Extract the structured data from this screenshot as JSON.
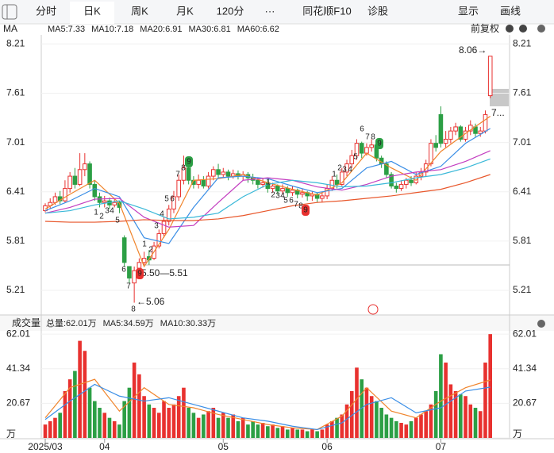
{
  "toolbar": {
    "tabs": [
      "分时",
      "日K",
      "周K",
      "月K",
      "120分",
      "···",
      "同花顺F10",
      "诊股"
    ],
    "active": 1,
    "right": [
      "显示",
      "画线"
    ]
  },
  "chart_data": [
    {
      "type": "candlestick",
      "legend_label": "MA",
      "adjust_label": "前复权",
      "up_color": "#e8312f",
      "down_color": "#2c9f45",
      "ylim": [
        4.93,
        8.31
      ],
      "yticks": [
        5.21,
        5.81,
        6.41,
        7.01,
        7.61,
        8.21
      ],
      "open": [
        6.18,
        6.24,
        6.28,
        6.35,
        6.3,
        6.45,
        6.6,
        6.5,
        6.68,
        6.75,
        6.5,
        6.35,
        6.28,
        6.3,
        6.25,
        6.28,
        5.85,
        5.5,
        5.3,
        5.48,
        5.55,
        5.62,
        5.6,
        5.75,
        5.9,
        6.05,
        6.2,
        6.35,
        6.55,
        6.7,
        6.55,
        6.5,
        6.55,
        6.48,
        6.6,
        6.68,
        6.62,
        6.65,
        6.6,
        6.63,
        6.6,
        6.62,
        6.58,
        6.55,
        6.5,
        6.52,
        6.45,
        6.48,
        6.42,
        6.45,
        6.4,
        6.43,
        6.38,
        6.4,
        6.36,
        6.38,
        6.33,
        6.36,
        6.45,
        6.55,
        6.5,
        6.65,
        6.75,
        6.85,
        7.0,
        6.88,
        6.95,
        6.98,
        6.82,
        6.75,
        6.62,
        6.48,
        6.45,
        6.5,
        6.55,
        6.52,
        6.6,
        6.65,
        6.75,
        7.0,
        7.35,
        7.0,
        7.05,
        7.15,
        7.2,
        7.05,
        7.15,
        7.2,
        7.12,
        7.15,
        7.58
      ],
      "high": [
        6.27,
        6.33,
        6.4,
        6.42,
        6.55,
        6.65,
        6.7,
        6.88,
        6.88,
        6.78,
        6.55,
        6.4,
        6.36,
        6.34,
        6.33,
        6.3,
        5.88,
        5.5,
        5.5,
        5.6,
        5.68,
        5.7,
        5.8,
        5.95,
        6.1,
        6.25,
        6.42,
        6.62,
        6.85,
        6.72,
        6.6,
        6.62,
        6.6,
        6.65,
        6.72,
        6.75,
        6.7,
        6.68,
        6.68,
        6.67,
        6.66,
        6.65,
        6.63,
        6.58,
        6.58,
        6.55,
        6.52,
        6.5,
        6.5,
        6.48,
        6.48,
        6.45,
        6.45,
        6.42,
        6.42,
        6.4,
        6.4,
        6.5,
        6.6,
        6.62,
        6.7,
        6.8,
        6.92,
        7.05,
        7.02,
        7.0,
        7.05,
        7.0,
        6.85,
        6.78,
        6.65,
        6.52,
        6.55,
        6.58,
        6.6,
        6.65,
        6.7,
        6.8,
        7.05,
        7.1,
        7.45,
        7.15,
        7.2,
        7.25,
        7.22,
        7.2,
        7.28,
        7.24,
        7.2,
        7.4,
        8.06
      ],
      "low": [
        6.16,
        6.2,
        6.25,
        6.26,
        6.28,
        6.4,
        6.45,
        6.48,
        6.6,
        6.45,
        6.3,
        6.22,
        6.22,
        6.2,
        6.22,
        6.15,
        5.5,
        5.3,
        5.06,
        5.45,
        5.52,
        5.52,
        5.58,
        5.72,
        5.85,
        6.0,
        6.15,
        6.3,
        6.5,
        6.5,
        6.45,
        6.45,
        6.45,
        6.45,
        6.55,
        6.58,
        6.58,
        6.55,
        6.57,
        6.56,
        6.55,
        6.52,
        6.5,
        6.45,
        6.46,
        6.4,
        6.4,
        6.38,
        6.38,
        6.35,
        6.36,
        6.33,
        6.34,
        6.3,
        6.3,
        6.28,
        6.28,
        6.32,
        6.42,
        6.45,
        6.48,
        6.6,
        6.7,
        6.8,
        6.82,
        6.85,
        6.9,
        6.78,
        6.7,
        6.58,
        6.45,
        6.4,
        6.42,
        6.45,
        6.48,
        6.5,
        6.55,
        6.6,
        6.72,
        6.9,
        6.95,
        6.95,
        7.0,
        7.1,
        7.02,
        7.02,
        7.1,
        7.08,
        7.08,
        7.12,
        7.55
      ],
      "close": [
        6.24,
        6.28,
        6.35,
        6.3,
        6.45,
        6.6,
        6.5,
        6.68,
        6.75,
        6.5,
        6.35,
        6.28,
        6.3,
        6.25,
        6.28,
        6.22,
        5.55,
        5.36,
        5.45,
        5.55,
        5.6,
        5.58,
        5.75,
        5.9,
        6.05,
        6.2,
        6.35,
        6.55,
        6.7,
        6.55,
        6.5,
        6.55,
        6.48,
        6.6,
        6.68,
        6.62,
        6.65,
        6.6,
        6.63,
        6.6,
        6.62,
        6.58,
        6.55,
        6.5,
        6.52,
        6.45,
        6.48,
        6.42,
        6.45,
        6.4,
        6.43,
        6.38,
        6.4,
        6.36,
        6.38,
        6.33,
        6.36,
        6.45,
        6.55,
        6.5,
        6.65,
        6.75,
        6.85,
        7.0,
        6.88,
        6.95,
        6.98,
        6.82,
        6.75,
        6.62,
        6.48,
        6.45,
        6.5,
        6.55,
        6.52,
        6.6,
        6.65,
        6.75,
        7.0,
        6.95,
        7.0,
        7.05,
        7.15,
        7.2,
        7.05,
        7.15,
        7.22,
        7.12,
        7.15,
        7.35,
        8.06
      ],
      "series": [
        {
          "name": "MA5:7.33",
          "color": "#f0852d",
          "x": [
            0,
            5,
            10,
            15,
            20,
            25,
            30,
            35,
            40,
            45,
            50,
            55,
            60,
            65,
            70,
            75,
            80,
            85,
            90
          ],
          "values": [
            6.2,
            6.38,
            6.55,
            6.27,
            5.5,
            5.95,
            6.55,
            6.57,
            6.62,
            6.52,
            6.44,
            6.37,
            6.52,
            6.88,
            6.7,
            6.55,
            6.9,
            7.12,
            7.33
          ]
        },
        {
          "name": "MA10:7.18",
          "color": "#3a8ee6",
          "x": [
            0,
            5,
            10,
            15,
            20,
            25,
            30,
            35,
            40,
            45,
            50,
            55,
            60,
            65,
            70,
            75,
            80,
            85,
            90
          ],
          "values": [
            6.18,
            6.3,
            6.45,
            6.35,
            5.85,
            5.78,
            6.22,
            6.58,
            6.6,
            6.57,
            6.48,
            6.4,
            6.45,
            6.7,
            6.78,
            6.62,
            6.72,
            7.0,
            7.18
          ]
        },
        {
          "name": "MA20:6.91",
          "color": "#c33ec0",
          "x": [
            0,
            5,
            10,
            15,
            20,
            25,
            30,
            35,
            40,
            45,
            50,
            55,
            60,
            65,
            70,
            75,
            80,
            85,
            90
          ],
          "values": [
            6.15,
            6.22,
            6.32,
            6.33,
            6.1,
            5.98,
            6.0,
            6.28,
            6.55,
            6.58,
            6.55,
            6.47,
            6.43,
            6.5,
            6.6,
            6.65,
            6.68,
            6.78,
            6.91
          ]
        },
        {
          "name": "MA30:6.81",
          "color": "#39b8d8",
          "x": [
            0,
            5,
            10,
            15,
            20,
            25,
            30,
            35,
            40,
            45,
            50,
            55,
            60,
            65,
            70,
            75,
            80,
            85,
            90
          ],
          "values": [
            6.15,
            6.18,
            6.25,
            6.3,
            6.2,
            6.08,
            6.1,
            6.15,
            6.35,
            6.5,
            6.55,
            6.52,
            6.47,
            6.48,
            6.52,
            6.58,
            6.62,
            6.7,
            6.81
          ]
        },
        {
          "name": "MA60:6.62",
          "color": "#e8562a",
          "x": [
            0,
            5,
            10,
            15,
            20,
            25,
            30,
            35,
            40,
            45,
            50,
            55,
            60,
            65,
            70,
            75,
            80,
            85,
            90
          ],
          "values": [
            6.05,
            6.04,
            6.04,
            6.05,
            6.07,
            6.06,
            6.06,
            6.08,
            6.12,
            6.18,
            6.24,
            6.28,
            6.3,
            6.33,
            6.36,
            6.4,
            6.44,
            6.52,
            6.62
          ]
        }
      ],
      "annotations": [
        "8.06→",
        "←5.06",
        "5.50—5.51",
        "7..."
      ],
      "td_counts": [
        {
          "text": "1"
        },
        {
          "text": "2"
        },
        {
          "text": "3"
        },
        {
          "text": "4"
        },
        {
          "text": "5"
        },
        {
          "text": "6"
        },
        {
          "text": "7"
        },
        {
          "text": "8"
        },
        {
          "text": "9",
          "color": "#e8312f"
        },
        {
          "text": "1"
        },
        {
          "text": "2"
        },
        {
          "text": "3"
        },
        {
          "text": "4"
        },
        {
          "text": "5"
        },
        {
          "text": "6"
        },
        {
          "text": "7"
        },
        {
          "text": "8"
        },
        {
          "text": "9",
          "color": "#2c9f45"
        },
        {
          "text": "1"
        },
        {
          "text": "2"
        },
        {
          "text": "3"
        },
        {
          "text": "4"
        },
        {
          "text": "5"
        },
        {
          "text": "6"
        },
        {
          "text": "7"
        },
        {
          "text": "8"
        },
        {
          "text": "9",
          "color": "#e8312f"
        },
        {
          "text": "1"
        },
        {
          "text": "2"
        },
        {
          "text": "3"
        },
        {
          "text": "4"
        },
        {
          "text": "5"
        },
        {
          "text": "6"
        },
        {
          "text": "7"
        },
        {
          "text": "8"
        },
        {
          "text": "9",
          "color": "#2c9f45"
        }
      ]
    },
    {
      "type": "bar",
      "title": "成交量",
      "categories": [
        "2025/03",
        null,
        null,
        null,
        null,
        null,
        null,
        null,
        null,
        null,
        null,
        null,
        "04",
        null,
        null,
        null,
        null,
        null,
        null,
        null,
        null,
        null,
        null,
        null,
        null,
        null,
        null,
        null,
        null,
        null,
        null,
        null,
        null,
        null,
        null,
        null,
        "05",
        null,
        null,
        null,
        null,
        null,
        null,
        null,
        null,
        null,
        null,
        null,
        null,
        null,
        null,
        null,
        null,
        null,
        null,
        null,
        null,
        "06",
        null,
        null,
        null,
        null,
        null,
        null,
        null,
        null,
        null,
        null,
        null,
        null,
        null,
        null,
        null,
        null,
        null,
        null,
        null,
        null,
        null,
        null,
        "07",
        null,
        null,
        null,
        null,
        null,
        null,
        null,
        null,
        null,
        null
      ],
      "ylim": [
        0,
        63.5
      ],
      "yticks": [
        {
          "value": 0,
          "label": "万"
        },
        20.67,
        41.34,
        62.01
      ],
      "series": [
        {
          "name": "总量:62.01万",
          "color": "#e8312f",
          "values": [
            8,
            10,
            12,
            15,
            28,
            35,
            40,
            58,
            52,
            30,
            22,
            18,
            15,
            12,
            10,
            8,
            22,
            30,
            45,
            38,
            25,
            20,
            18,
            15,
            22,
            18,
            20,
            25,
            30,
            18,
            15,
            12,
            14,
            16,
            18,
            12,
            15,
            12,
            14,
            10,
            12,
            8,
            10,
            8,
            9,
            7,
            8,
            6,
            7,
            5,
            6,
            5,
            5,
            4,
            5,
            4,
            5,
            8,
            10,
            12,
            14,
            20,
            28,
            42,
            35,
            30,
            25,
            22,
            18,
            14,
            12,
            10,
            9,
            8,
            10,
            12,
            14,
            16,
            20,
            28,
            50,
            45,
            32,
            28,
            26,
            25,
            20,
            18,
            16,
            45,
            62.01
          ]
        },
        {
          "name": "MA5:34.59万",
          "color": "#f0852d",
          "x": [
            0,
            5,
            10,
            15,
            20,
            25,
            30,
            35,
            40,
            45,
            50,
            55,
            60,
            65,
            70,
            75,
            80,
            85,
            90
          ],
          "values": [
            12,
            30,
            35,
            16,
            30,
            20,
            18,
            14,
            11,
            8,
            6,
            5,
            13,
            30,
            16,
            12,
            22,
            30,
            34.59
          ]
        },
        {
          "name": "MA10:30.33万",
          "color": "#3a8ee6",
          "x": [
            0,
            5,
            10,
            15,
            20,
            25,
            30,
            35,
            40,
            45,
            50,
            55,
            60,
            65,
            70,
            75,
            80,
            85,
            90
          ],
          "values": [
            11,
            22,
            32,
            25,
            22,
            24,
            20,
            16,
            12,
            10,
            7,
            5,
            9,
            20,
            24,
            15,
            18,
            28,
            30.33
          ]
        }
      ]
    }
  ]
}
